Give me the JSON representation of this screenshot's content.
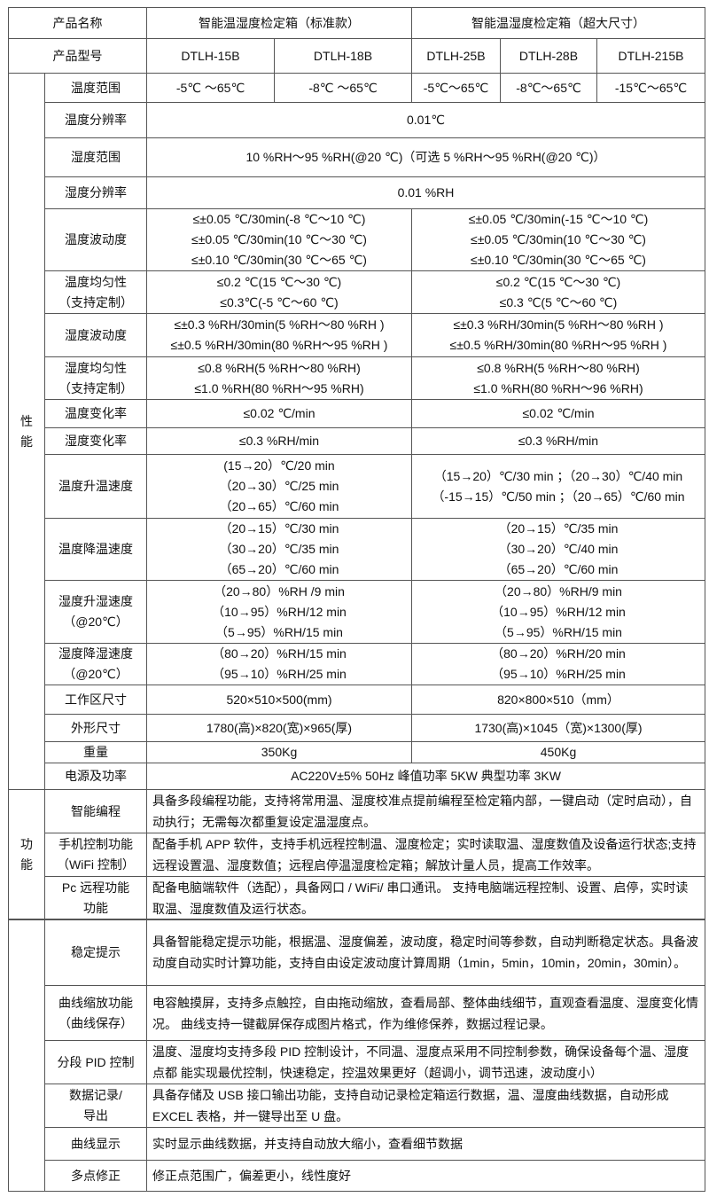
{
  "header": {
    "name_label": "产品名称",
    "group_standard": "智能温湿度检定箱（标准款）",
    "group_large": "智能温湿度检定箱（超大尺寸）",
    "model_label": "产品型号",
    "models": [
      "DTLH-15B",
      "DTLH-18B",
      "DTLH-25B",
      "DTLH-28B",
      "DTLH-215B"
    ]
  },
  "performance": {
    "section_label": [
      "性",
      "能"
    ],
    "temp_range": {
      "label": "温度范围",
      "values": [
        "-5℃ ～65℃",
        "-8℃ ～65℃",
        "-5℃～65℃",
        "-8℃～65℃",
        "-15℃～65℃"
      ]
    },
    "temp_resolution": {
      "label": "温度分辨率",
      "value": "0.01℃"
    },
    "humidity_range": {
      "label": "湿度范围",
      "value": "10 %RH～95 %RH(@20 ℃)（可选 5 %RH～95 %RH(@20 ℃)）"
    },
    "humidity_resolution": {
      "label": "湿度分辨率",
      "value": "0.01 %RH"
    },
    "temp_fluctuation": {
      "label": "温度波动度",
      "standard": [
        "≤±0.05 ℃/30min(-8 ℃～10 ℃)",
        "≤±0.05 ℃/30min(10 ℃～30 ℃)",
        "≤±0.10 ℃/30min(30 ℃～65 ℃)"
      ],
      "large": [
        "≤±0.05 ℃/30min(-15 ℃～10 ℃)",
        "≤±0.05 ℃/30min(10 ℃～30 ℃)",
        "≤±0.10 ℃/30min(30 ℃～65 ℃)"
      ]
    },
    "temp_uniformity": {
      "label": [
        "温度均匀性",
        "（支持定制）"
      ],
      "standard": [
        "≤0.2 ℃(15 ℃～30 ℃)",
        "≤0.3℃(-5 ℃～60 ℃)"
      ],
      "large": [
        "≤0.2 ℃(15 ℃～30 ℃)",
        "≤0.3 ℃(5 ℃～60 ℃)"
      ]
    },
    "humidity_fluctuation": {
      "label": "湿度波动度",
      "standard": [
        "≤±0.3 %RH/30min(5 %RH～80 %RH )",
        "≤±0.5 %RH/30min(80 %RH～95 %RH )"
      ],
      "large": [
        "≤±0.3 %RH/30min(5 %RH～80 %RH )",
        "≤±0.5 %RH/30min(80 %RH～95 %RH )"
      ]
    },
    "humidity_uniformity": {
      "label": [
        "湿度均匀性",
        "（支持定制）"
      ],
      "standard": [
        "≤0.8 %RH(5 %RH～80 %RH)",
        "≤1.0 %RH(80 %RH～95 %RH)"
      ],
      "large": [
        "≤0.8 %RH(5 %RH～80 %RH)",
        "≤1.0 %RH(80 %RH～96 %RH)"
      ]
    },
    "temp_change_rate": {
      "label": "温度变化率",
      "standard": "≤0.02 ℃/min",
      "large": "≤0.02 ℃/min"
    },
    "humidity_change_rate": {
      "label": "湿度变化率",
      "standard": "≤0.3 %RH/min",
      "large": "≤0.3 %RH/min"
    },
    "heating_speed": {
      "label": "温度升温速度",
      "standard": [
        "(15→20）℃/20 min",
        "（20→30）℃/25 min",
        "（20→65）℃/60 min"
      ],
      "large": [
        "（15→20）℃/30 min ；（20→30）℃/40 min",
        "（-15→15）℃/50 min ；（20→65）℃/60 min"
      ]
    },
    "cooling_speed": {
      "label": "温度降温速度",
      "standard": [
        "（20→15）℃/30 min",
        "（30→20）℃/35 min",
        "（65→20）℃/60 min"
      ],
      "large": [
        "（20→15）℃/35 min",
        "（30→20）℃/40 min",
        "（65→20）℃/60 min"
      ]
    },
    "humidify_speed": {
      "label": [
        "湿度升湿速度",
        "（@20℃）"
      ],
      "standard": [
        "（20→80）%RH /9 min",
        "（10→95）%RH/12 min",
        "（5→95）%RH/15 min"
      ],
      "large": [
        "（20→80）%RH/9 min",
        "（10→95）%RH/12 min",
        "（5→95）%RH/15 min"
      ]
    },
    "dehumidify_speed": {
      "label": [
        "湿度降湿速度",
        "（@20℃）"
      ],
      "standard": [
        "（80→20）%RH/15 min",
        "（95→10）%RH/25 min"
      ],
      "large": [
        "（80→20）%RH/20 min",
        "（95→10）%RH/25 min"
      ]
    },
    "work_area": {
      "label": "工作区尺寸",
      "standard": "520×510×500(mm)",
      "large": "820×800×510（mm）"
    },
    "outer_size": {
      "label": "外形尺寸",
      "standard": "1780(高)×820(宽)×965(厚)",
      "large": "1730(高)×1045（宽)×1300(厚)"
    },
    "weight": {
      "label": "重量",
      "standard": "350Kg",
      "large": "450Kg"
    },
    "power": {
      "label": "电源及功率",
      "value": "AC220V±5% 50Hz  峰值功率 5KW  典型功率 3KW"
    }
  },
  "functions": {
    "section_label": [
      "功",
      "能"
    ],
    "items": [
      {
        "label": [
          "智能编程"
        ],
        "text": "具备多段编程功能，支持将常用温、湿度校准点提前编程至检定箱内部，一键启动（定时启动），自动执行；无需每次都重复设定温湿度点。"
      },
      {
        "label": [
          "手机控制功能",
          "（WiFi 控制）"
        ],
        "text": "配备手机 APP 软件，支持手机远程控制温、湿度检定；实时读取温、湿度数值及设备运行状态;支持远程设置温、湿度数值；远程启停温湿度检定箱；解放计量人员，提高工作效率。"
      },
      {
        "label": [
          "Pc 远程功能",
          "功能"
        ],
        "text": "配备电脑端软件（选配），具备网口  / WiFi/  串口通讯。 支持电脑端远程控制、设置、启停，实时读取温、湿度数值及运行状态。"
      }
    ]
  },
  "features": [
    {
      "label": [
        "稳定提示"
      ],
      "text": "具备智能稳定提示功能，根据温、湿度偏差，波动度，稳定时间等参数，自动判断稳定状态。具备波  动度自动实时计算功能，支持自由设定波动度计算周期（1min，5min，10min，20min，30min）。"
    },
    {
      "label": [
        "曲线缩放功能",
        "（曲线保存）"
      ],
      "text": "电容触摸屏，支持多点触控，自由拖动缩放，查看局部、整体曲线细节，直观查看温度、湿度变化情况。 曲线支持一键截屏保存成图片格式，作为维修保养，数据过程记录。"
    },
    {
      "label": [
        "分段 PID 控制"
      ],
      "text": "温度、湿度均支持多段 PID 控制设计，不同温、湿度点采用不同控制参数，确保设备每个温、湿度点都  能实现最优控制，快速稳定，控温效果更好（超调小，调节迅速，波动度小）"
    },
    {
      "label": [
        "数据记录/",
        "导出"
      ],
      "text": "具备存储及 USB 接口输出功能，支持自动记录检定箱运行数据，温、湿度曲线数据，自动形成 EXCEL 表格，并一键导出至 U 盘。"
    },
    {
      "label": [
        "曲线显示"
      ],
      "text": "实时显示曲线数据，并支持自动放大缩小，查看细节数据"
    },
    {
      "label": [
        "多点修正"
      ],
      "text": "修正点范围广，偏差更小，线性度好"
    }
  ]
}
